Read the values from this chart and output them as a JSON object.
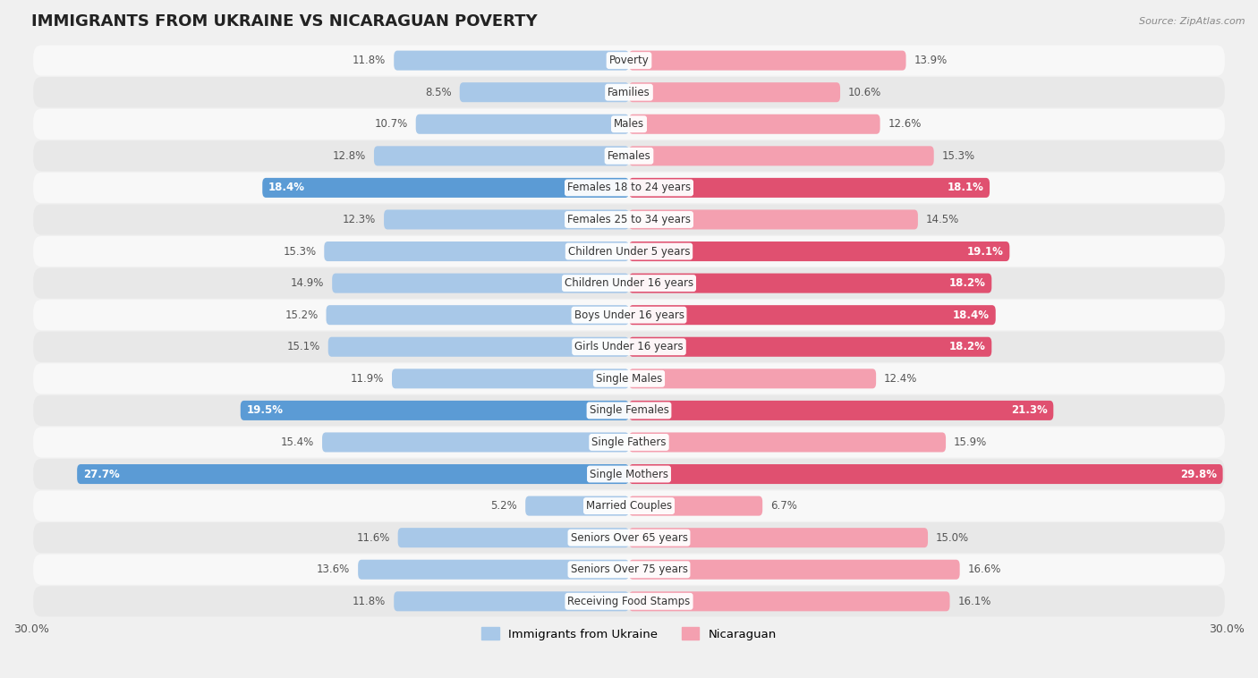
{
  "title": "IMMIGRANTS FROM UKRAINE VS NICARAGUAN POVERTY",
  "source": "Source: ZipAtlas.com",
  "categories": [
    "Poverty",
    "Families",
    "Males",
    "Females",
    "Females 18 to 24 years",
    "Females 25 to 34 years",
    "Children Under 5 years",
    "Children Under 16 years",
    "Boys Under 16 years",
    "Girls Under 16 years",
    "Single Males",
    "Single Females",
    "Single Fathers",
    "Single Mothers",
    "Married Couples",
    "Seniors Over 65 years",
    "Seniors Over 75 years",
    "Receiving Food Stamps"
  ],
  "ukraine_values": [
    11.8,
    8.5,
    10.7,
    12.8,
    18.4,
    12.3,
    15.3,
    14.9,
    15.2,
    15.1,
    11.9,
    19.5,
    15.4,
    27.7,
    5.2,
    11.6,
    13.6,
    11.8
  ],
  "nicaraguan_values": [
    13.9,
    10.6,
    12.6,
    15.3,
    18.1,
    14.5,
    19.1,
    18.2,
    18.4,
    18.2,
    12.4,
    21.3,
    15.9,
    29.8,
    6.7,
    15.0,
    16.6,
    16.1
  ],
  "ukraine_color_normal": "#a8c8e8",
  "ukraine_color_highlight": "#5b9bd5",
  "nicaraguan_color_normal": "#f4a0b0",
  "nicaraguan_color_highlight": "#e05070",
  "highlight_threshold": 17.0,
  "background_color": "#f0f0f0",
  "row_color_light": "#f8f8f8",
  "row_color_dark": "#e8e8e8",
  "axis_limit": 30.0,
  "bar_height": 0.62,
  "legend_ukraine": "Immigrants from Ukraine",
  "legend_nicaraguan": "Nicaraguan",
  "title_fontsize": 13,
  "label_fontsize": 9,
  "value_fontsize": 8.5,
  "category_fontsize": 8.5
}
